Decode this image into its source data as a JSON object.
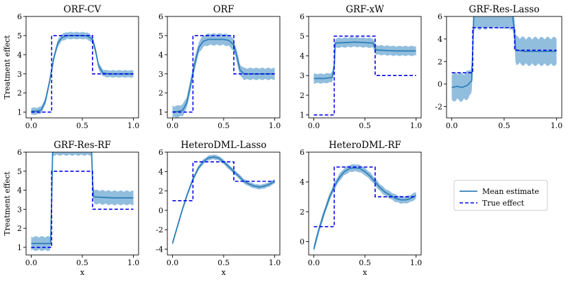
{
  "figure_ylabel": "Treatment effect",
  "figure_xlabel": "x",
  "legend": {
    "mean_label": "Mean estimate",
    "true_label": "True effect",
    "placement": "center-right"
  },
  "colors": {
    "mean": "#2f7fb8",
    "band": "#7fb3d8",
    "truth": "#0000ee"
  },
  "chart_data": [
    {
      "type": "line",
      "title": "ORF-CV",
      "ylim": [
        0.7,
        6.0
      ],
      "yticks": [
        1,
        2,
        3,
        4,
        5,
        6
      ],
      "xlim": [
        -0.05,
        1.05
      ],
      "xticks": [
        "0.0",
        "0.5",
        "1.0"
      ],
      "band": 0.15,
      "true_effect": {
        "x": [
          0,
          0.2,
          0.2,
          0.6,
          0.6,
          1.0
        ],
        "y": [
          1,
          1,
          5,
          5,
          3,
          3
        ]
      },
      "mean_estimate": {
        "x": [
          0,
          0.05,
          0.1,
          0.14,
          0.18,
          0.22,
          0.26,
          0.3,
          0.35,
          0.4,
          0.45,
          0.5,
          0.55,
          0.6,
          0.63,
          0.66,
          0.7,
          0.75,
          0.8,
          0.85,
          0.9,
          0.95,
          1.0
        ],
        "y": [
          1.05,
          1.05,
          1.12,
          1.6,
          2.6,
          3.8,
          4.6,
          4.9,
          5.0,
          5.0,
          5.0,
          5.0,
          4.98,
          4.8,
          4.2,
          3.4,
          3.05,
          3.0,
          3.0,
          3.0,
          3.0,
          3.0,
          3.0
        ]
      }
    },
    {
      "type": "line",
      "title": "ORF",
      "ylim": [
        0.7,
        6.0
      ],
      "yticks": [
        1,
        2,
        3,
        4,
        5,
        6
      ],
      "xlim": [
        -0.05,
        1.05
      ],
      "xticks": [
        "0.0",
        "0.5",
        "1.0"
      ],
      "band": 0.25,
      "true_effect": {
        "x": [
          0,
          0.2,
          0.2,
          0.6,
          0.6,
          1.0
        ],
        "y": [
          1,
          1,
          5,
          5,
          3,
          3
        ]
      },
      "mean_estimate": {
        "x": [
          0,
          0.05,
          0.1,
          0.14,
          0.18,
          0.22,
          0.26,
          0.3,
          0.35,
          0.4,
          0.45,
          0.5,
          0.55,
          0.6,
          0.63,
          0.66,
          0.7,
          0.75,
          0.8,
          0.85,
          0.9,
          0.95,
          1.0
        ],
        "y": [
          1.02,
          1.03,
          1.1,
          1.5,
          2.5,
          3.6,
          4.4,
          4.7,
          4.8,
          4.8,
          4.8,
          4.8,
          4.75,
          4.5,
          3.9,
          3.2,
          3.0,
          3.0,
          3.0,
          3.0,
          3.0,
          3.0,
          3.0
        ]
      }
    },
    {
      "type": "line",
      "title": "GRF-xW",
      "ylim": [
        0.85,
        6.0
      ],
      "yticks": [
        1,
        2,
        3,
        4,
        5,
        6
      ],
      "xlim": [
        -0.05,
        1.05
      ],
      "xticks": [
        "0.0",
        "0.5",
        "1.0"
      ],
      "band": 0.2,
      "true_effect": {
        "x": [
          0,
          0.2,
          0.2,
          0.6,
          0.6,
          1.0
        ],
        "y": [
          1,
          1,
          5,
          5,
          3,
          3
        ]
      },
      "mean_estimate": {
        "x": [
          0,
          0.1,
          0.18,
          0.2,
          0.21,
          0.4,
          0.58,
          0.6,
          0.61,
          0.8,
          1.0
        ],
        "y": [
          2.85,
          2.85,
          2.9,
          3.5,
          4.65,
          4.7,
          4.65,
          4.4,
          4.3,
          4.25,
          4.25
        ]
      }
    },
    {
      "type": "line",
      "title": "GRF-Res-Lasso",
      "ylim": [
        -3.0,
        6.0
      ],
      "yticks": [
        -2,
        0,
        2,
        4,
        6
      ],
      "xlim": [
        -0.05,
        1.05
      ],
      "xticks": [
        "0.0",
        "0.5",
        "1.0"
      ],
      "band": 1.0,
      "true_effect": {
        "x": [
          0,
          0.2,
          0.2,
          0.6,
          0.6,
          1.0
        ],
        "y": [
          1,
          1,
          5,
          5,
          3,
          3
        ]
      },
      "mean_estimate": {
        "x": [
          0,
          0.05,
          0.1,
          0.15,
          0.19,
          0.2,
          0.21,
          0.3,
          0.4,
          0.5,
          0.58,
          0.6,
          0.61,
          0.7,
          0.8,
          0.9,
          1.0
        ],
        "y": [
          -0.3,
          -0.2,
          -0.3,
          -0.1,
          0.3,
          3.0,
          6.1,
          6.1,
          6.2,
          6.2,
          6.1,
          4.5,
          3.0,
          2.9,
          2.9,
          2.9,
          2.9
        ]
      }
    },
    {
      "type": "line",
      "title": "GRF-Res-RF",
      "ylim": [
        0.6,
        6.0
      ],
      "yticks": [
        1,
        2,
        3,
        4,
        5,
        6
      ],
      "xlim": [
        -0.05,
        1.05
      ],
      "xticks": [
        "0.0",
        "0.5",
        "1.0"
      ],
      "band": 0.3,
      "true_effect": {
        "x": [
          0,
          0.2,
          0.2,
          0.6,
          0.6,
          1.0
        ],
        "y": [
          1,
          1,
          5,
          5,
          3,
          3
        ]
      },
      "mean_estimate": {
        "x": [
          0,
          0.1,
          0.19,
          0.2,
          0.21,
          0.4,
          0.59,
          0.6,
          0.61,
          0.8,
          1.0
        ],
        "y": [
          1.2,
          1.2,
          1.2,
          3.5,
          6.2,
          6.2,
          6.2,
          4.5,
          3.65,
          3.6,
          3.6
        ]
      }
    },
    {
      "type": "line",
      "title": "HeteroDML-Lasso",
      "ylim": [
        -4.6,
        6.0
      ],
      "yticks": [
        -4,
        -2,
        0,
        2,
        4,
        6
      ],
      "xlim": [
        -0.05,
        1.05
      ],
      "xticks": [
        "0.0",
        "0.5",
        "1.0"
      ],
      "band": 0.2,
      "true_effect": {
        "x": [
          0,
          0.2,
          0.2,
          0.6,
          0.6,
          1.0
        ],
        "y": [
          1,
          1,
          5,
          5,
          3,
          3
        ]
      },
      "mean_estimate": {
        "x": [
          0,
          0.05,
          0.1,
          0.15,
          0.2,
          0.25,
          0.3,
          0.35,
          0.4,
          0.45,
          0.5,
          0.55,
          0.6,
          0.65,
          0.7,
          0.75,
          0.8,
          0.85,
          0.9,
          0.95,
          1.0
        ],
        "y": [
          -3.4,
          -1.6,
          0.2,
          1.8,
          3.2,
          4.3,
          5.0,
          5.4,
          5.5,
          5.4,
          5.0,
          4.5,
          4.0,
          3.5,
          3.0,
          2.7,
          2.5,
          2.4,
          2.5,
          2.7,
          3.0
        ]
      }
    },
    {
      "type": "line",
      "title": "HeteroDML-RF",
      "ylim": [
        -0.9,
        6.0
      ],
      "yticks": [
        0,
        2,
        4,
        6
      ],
      "xlim": [
        -0.05,
        1.05
      ],
      "xticks": [
        "0.0",
        "0.5",
        "1.0"
      ],
      "band": 0.2,
      "true_effect": {
        "x": [
          0,
          0.2,
          0.2,
          0.6,
          0.6,
          1.0
        ],
        "y": [
          1,
          1,
          5,
          5,
          3,
          3
        ]
      },
      "mean_estimate": {
        "x": [
          0,
          0.05,
          0.1,
          0.15,
          0.2,
          0.25,
          0.3,
          0.35,
          0.4,
          0.45,
          0.5,
          0.55,
          0.6,
          0.65,
          0.7,
          0.75,
          0.8,
          0.85,
          0.9,
          0.95,
          1.0
        ],
        "y": [
          -0.5,
          0.8,
          1.9,
          2.9,
          3.7,
          4.3,
          4.7,
          4.9,
          4.95,
          4.9,
          4.7,
          4.4,
          4.0,
          3.6,
          3.3,
          3.1,
          2.9,
          2.8,
          2.8,
          2.9,
          3.1
        ]
      }
    }
  ]
}
